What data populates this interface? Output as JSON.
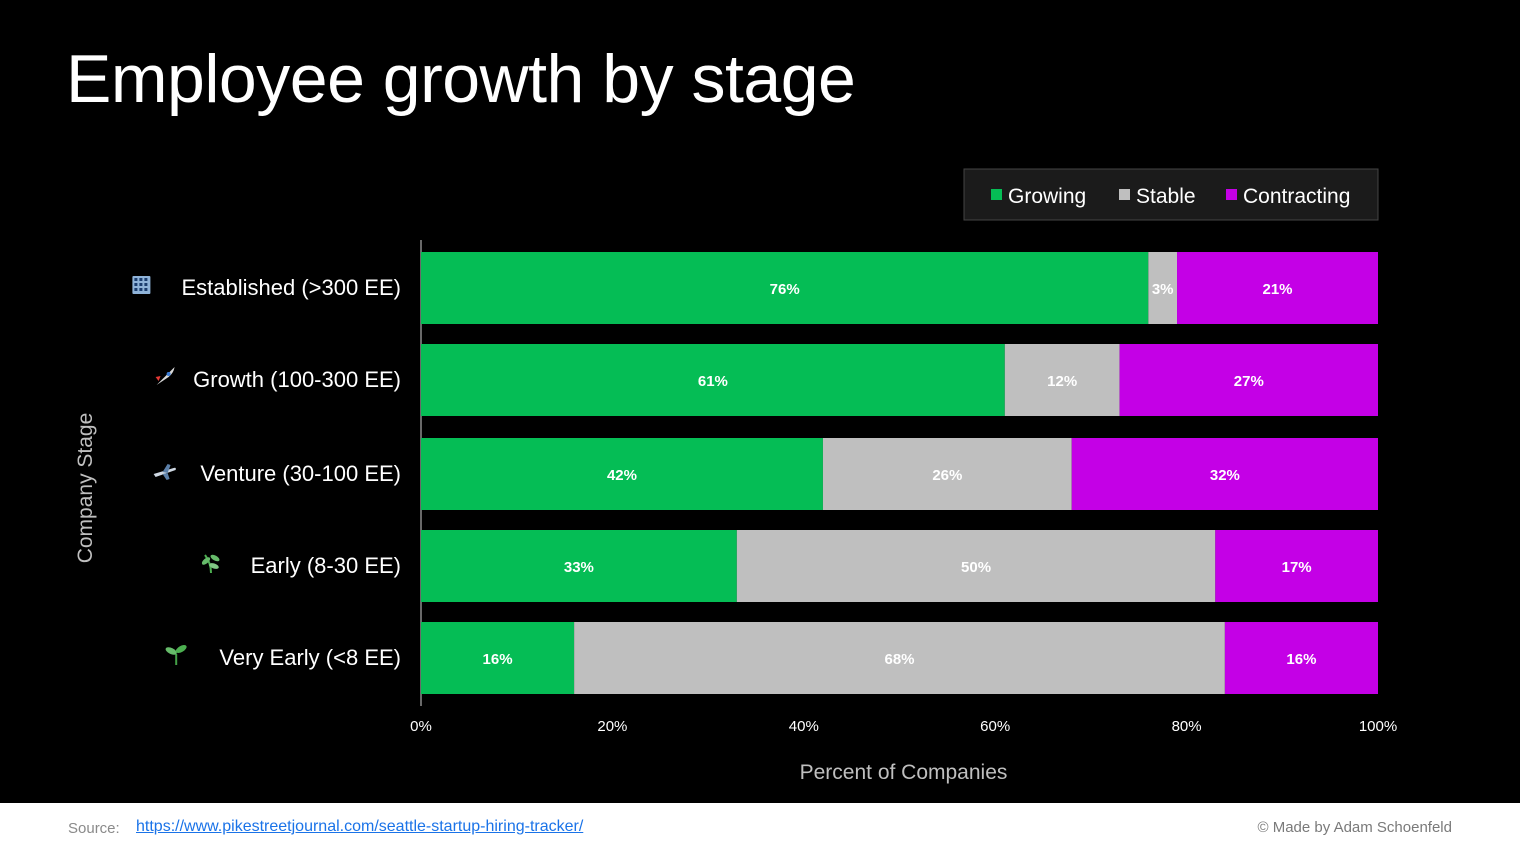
{
  "slide": {
    "title": "Employee growth by stage",
    "footer": {
      "source_label": "Source:",
      "source_link": "https://www.pikestreetjournal.com/seattle-startup-hiring-tracker/",
      "credit": "© Made by Adam Schoenfeld"
    },
    "colors": {
      "background": "#000000",
      "growing": "#05bd55",
      "stable": "#bfbfbf",
      "contracting": "#c400e6"
    }
  },
  "chart_data": {
    "type": "bar",
    "orientation": "horizontal",
    "stacked": "percent",
    "categories": [
      "Established (>300 EE)",
      "Growth (100-300 EE)",
      "Venture (30-100 EE)",
      "Early (8-30 EE)",
      "Very Early (<8 EE)"
    ],
    "category_icons": [
      "office-building-icon",
      "rocket-icon",
      "airplane-icon",
      "herb-icon",
      "seedling-icon"
    ],
    "series": [
      {
        "name": "Growing",
        "color": "#05bd55",
        "values": [
          76,
          61,
          42,
          33,
          16
        ]
      },
      {
        "name": "Stable",
        "color": "#bfbfbf",
        "values": [
          3,
          12,
          26,
          50,
          68
        ]
      },
      {
        "name": "Contracting",
        "color": "#c400e6",
        "values": [
          21,
          27,
          32,
          17,
          16
        ]
      }
    ],
    "data_labels": [
      [
        "76%",
        "3%",
        "21%"
      ],
      [
        "61%",
        "12%",
        "27%"
      ],
      [
        "42%",
        "26%",
        "32%"
      ],
      [
        "33%",
        "50%",
        "17%"
      ],
      [
        "16%",
        "68%",
        "16%"
      ]
    ],
    "xlabel": "Percent of Companies",
    "ylabel": "Company Stage",
    "xlim": [
      0,
      100
    ],
    "xticks": [
      "0%",
      "20%",
      "40%",
      "60%",
      "80%",
      "100%"
    ],
    "legend_position": "top-right",
    "grid": false
  }
}
